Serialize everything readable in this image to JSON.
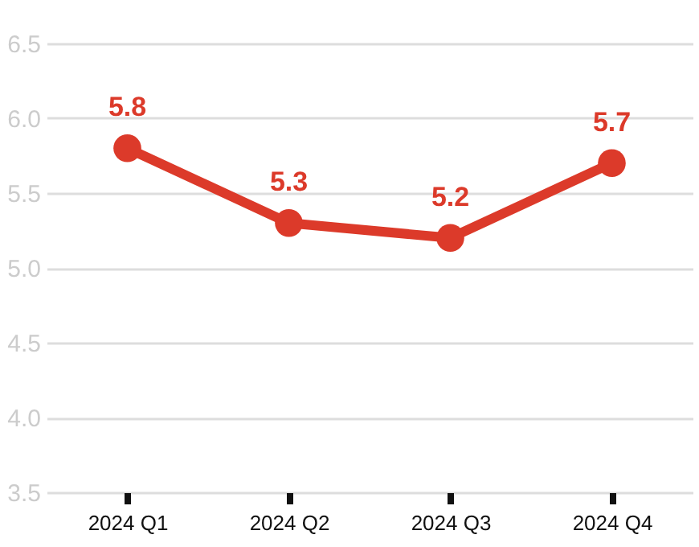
{
  "chart_data": {
    "type": "line",
    "categories": [
      "2024 Q1",
      "2024 Q2",
      "2024 Q3",
      "2024 Q4"
    ],
    "series": [
      {
        "color": "#dc3a2a",
        "values": [
          5.8,
          5.3,
          5.2,
          5.7
        ]
      }
    ],
    "ylim": [
      3.5,
      6.5
    ],
    "yticks": [
      3.5,
      {
        "value": 4,
        "label": "4.0"
      },
      4.5,
      {
        "value": 5,
        "label": "5.0"
      },
      5.5,
      {
        "value": 6,
        "label": "6.0"
      },
      6.5
    ],
    "grid": "y",
    "marker": "circle",
    "data_labels": true
  }
}
